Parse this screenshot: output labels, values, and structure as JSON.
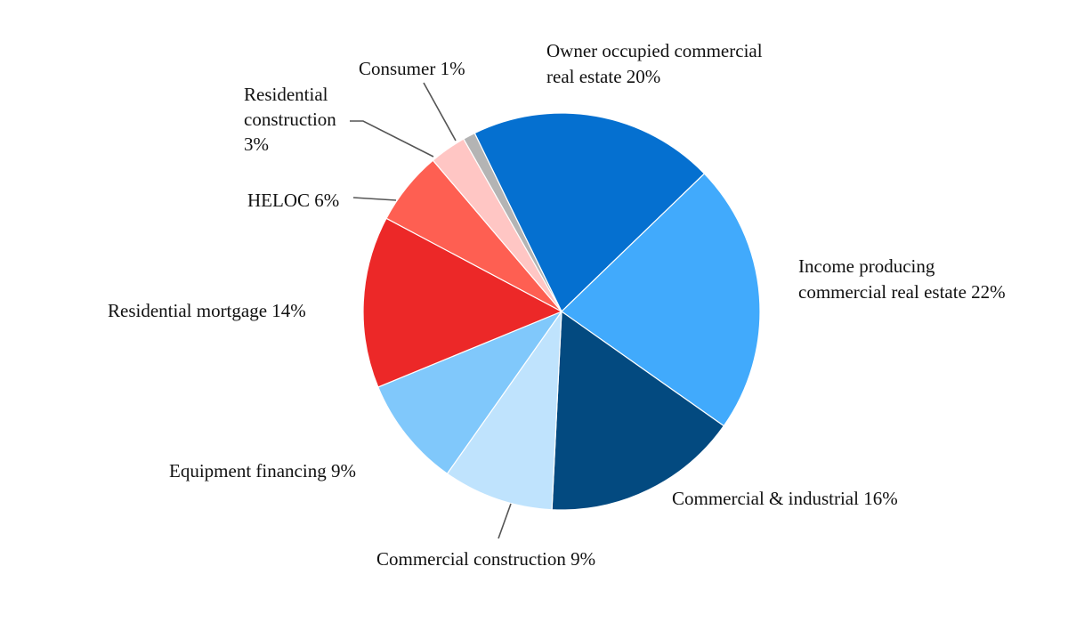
{
  "chart_data": {
    "type": "pie",
    "title": "",
    "slices": [
      {
        "name": "Owner occupied commercial real estate",
        "value": 20,
        "color": "#0570D0",
        "label_lines": [
          "Owner occupied commercial",
          "real estate 20%"
        ]
      },
      {
        "name": "Income producing commercial real estate",
        "value": 22,
        "color": "#41AAFC",
        "label_lines": [
          "Income producing",
          "commercial real estate 22%"
        ]
      },
      {
        "name": "Commercial & industrial",
        "value": 16,
        "color": "#034A80",
        "label_lines": [
          "Commercial & industrial 16%"
        ]
      },
      {
        "name": "Commercial construction",
        "value": 9,
        "color": "#BFE3FD",
        "label_lines": [
          "Commercial construction 9%"
        ]
      },
      {
        "name": "Equipment financing",
        "value": 9,
        "color": "#80C8FB",
        "label_lines": [
          "Equipment financing 9%"
        ]
      },
      {
        "name": "Residential mortgage",
        "value": 14,
        "color": "#EC2828",
        "label_lines": [
          "Residential mortgage 14%"
        ]
      },
      {
        "name": "HELOC",
        "value": 6,
        "color": "#FE5F52",
        "label_lines": [
          "HELOC 6%"
        ]
      },
      {
        "name": "Residential construction",
        "value": 3,
        "color": "#FFC6C4",
        "label_lines": [
          "Residential",
          "construction",
          "3%"
        ]
      },
      {
        "name": "Consumer",
        "value": 1,
        "color": "#B4B4B4",
        "label_lines": [
          "Consumer 1%"
        ]
      }
    ]
  }
}
